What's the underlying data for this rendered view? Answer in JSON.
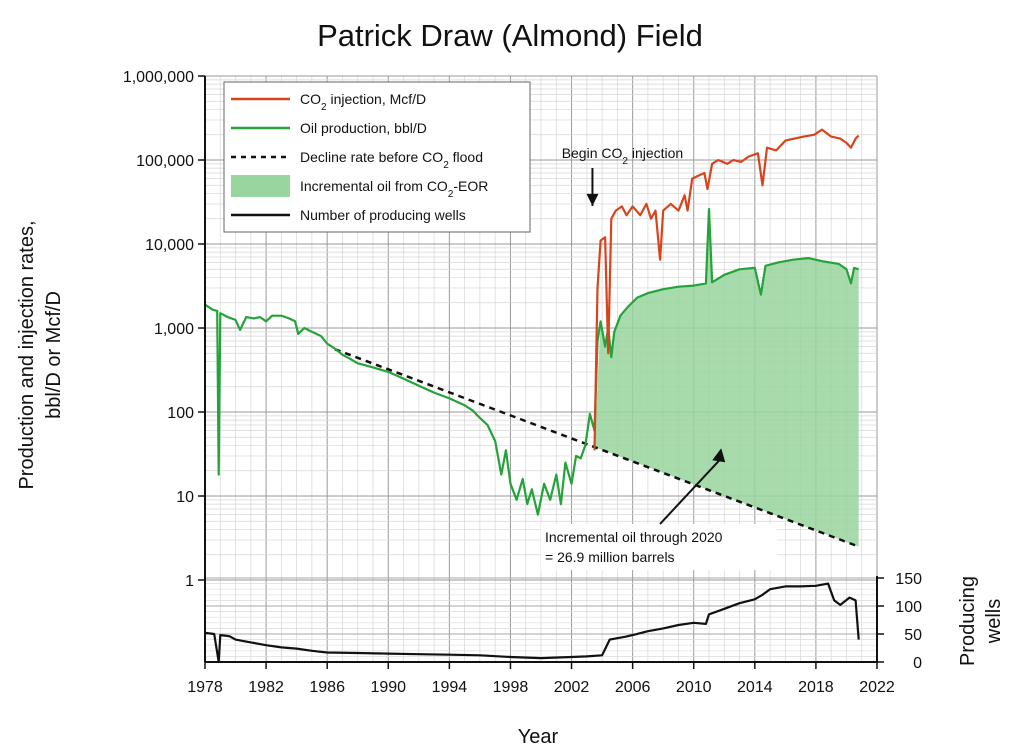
{
  "chart_data": {
    "type": "line",
    "title": "Patrick Draw (Almond) Field",
    "xlabel": "Year",
    "ylabel_line1": "Production and injection rates,",
    "ylabel_line2": "bbl/D or Mcf/D",
    "y2label_line1": "Producing",
    "y2label_line2": "wells",
    "x_ticks": [
      "1978",
      "1982",
      "1986",
      "1990",
      "1994",
      "1998",
      "2002",
      "2006",
      "2010",
      "2014",
      "2018",
      "2022"
    ],
    "xlim": [
      1978,
      2022
    ],
    "y_scale": "log",
    "ylim": [
      1,
      1000000
    ],
    "y_ticks": [
      "1",
      "10",
      "100",
      "1,000",
      "10,000",
      "100,000",
      "1,000,000"
    ],
    "y2lim": [
      0,
      150
    ],
    "y2_ticks": [
      "0",
      "50",
      "100",
      "150"
    ],
    "grid": true,
    "legend_position": "top-left",
    "legend": [
      {
        "prefix": "CO",
        "sub": "2",
        "suffix": " injection, Mcf/D",
        "kind": "line",
        "color": "#d9441d"
      },
      {
        "prefix": "Oil production, bbl/D",
        "sub": "",
        "suffix": "",
        "kind": "line",
        "color": "#23a33a"
      },
      {
        "prefix": "Decline rate before CO",
        "sub": "2",
        "suffix": " flood",
        "kind": "dash",
        "color": "#111111"
      },
      {
        "prefix": "Incremental oil from CO",
        "sub": "2",
        "suffix": "-EOR",
        "kind": "fill",
        "color": "#99d59e"
      },
      {
        "prefix": "Number of producing wells",
        "sub": "",
        "suffix": "",
        "kind": "line",
        "color": "#111111"
      }
    ],
    "annotations": {
      "begin_prefix": "Begin CO",
      "begin_sub": "2",
      "begin_suffix": " injection",
      "begin_year": 2003.5,
      "begin_arrow_tip": 30000,
      "incremental_line1": "Incremental oil through 2020",
      "incremental_line2": "= 26.9 million barrels",
      "incremental_arrow_tip": {
        "x": 2011.8,
        "y": 35
      }
    },
    "series": [
      {
        "name": "CO2 injection, Mcf/D",
        "color": "#d9441d",
        "points": [
          [
            2003.5,
            35
          ],
          [
            2003.7,
            3000
          ],
          [
            2003.9,
            11000
          ],
          [
            2004.2,
            12000
          ],
          [
            2004.4,
            500
          ],
          [
            2004.6,
            20000
          ],
          [
            2004.9,
            25000
          ],
          [
            2005.3,
            28000
          ],
          [
            2005.6,
            22000
          ],
          [
            2006.0,
            28000
          ],
          [
            2006.5,
            22000
          ],
          [
            2006.9,
            30000
          ],
          [
            2007.2,
            20000
          ],
          [
            2007.5,
            25000
          ],
          [
            2007.8,
            6500
          ],
          [
            2008.0,
            25000
          ],
          [
            2008.5,
            30000
          ],
          [
            2009.0,
            25000
          ],
          [
            2009.4,
            38000
          ],
          [
            2009.6,
            25000
          ],
          [
            2009.9,
            60000
          ],
          [
            2010.3,
            65000
          ],
          [
            2010.7,
            70000
          ],
          [
            2010.9,
            45000
          ],
          [
            2011.2,
            90000
          ],
          [
            2011.6,
            100000
          ],
          [
            2012.2,
            90000
          ],
          [
            2012.6,
            100000
          ],
          [
            2013.1,
            95000
          ],
          [
            2013.6,
            110000
          ],
          [
            2014.2,
            120000
          ],
          [
            2014.5,
            50000
          ],
          [
            2014.8,
            140000
          ],
          [
            2015.4,
            130000
          ],
          [
            2016.0,
            170000
          ],
          [
            2016.6,
            180000
          ],
          [
            2017.2,
            190000
          ],
          [
            2017.9,
            200000
          ],
          [
            2018.4,
            230000
          ],
          [
            2019.0,
            190000
          ],
          [
            2019.6,
            180000
          ],
          [
            2020.0,
            160000
          ],
          [
            2020.3,
            140000
          ],
          [
            2020.6,
            180000
          ],
          [
            2020.8,
            195000
          ]
        ]
      },
      {
        "name": "Oil production, bbl/D",
        "color": "#23a33a",
        "points": [
          [
            1978.0,
            1900
          ],
          [
            1978.5,
            1650
          ],
          [
            1978.8,
            1600
          ],
          [
            1978.9,
            18
          ],
          [
            1979.0,
            1500
          ],
          [
            1979.5,
            1350
          ],
          [
            1980.0,
            1250
          ],
          [
            1980.3,
            950
          ],
          [
            1980.7,
            1350
          ],
          [
            1981.2,
            1300
          ],
          [
            1981.6,
            1350
          ],
          [
            1982.0,
            1200
          ],
          [
            1982.4,
            1400
          ],
          [
            1983.0,
            1400
          ],
          [
            1983.5,
            1300
          ],
          [
            1983.9,
            1200
          ],
          [
            1984.1,
            850
          ],
          [
            1984.5,
            1000
          ],
          [
            1985.0,
            900
          ],
          [
            1985.6,
            800
          ],
          [
            1986.0,
            650
          ],
          [
            1986.5,
            570
          ],
          [
            1987.0,
            480
          ],
          [
            1987.5,
            430
          ],
          [
            1988.0,
            380
          ],
          [
            1988.5,
            360
          ],
          [
            1989.0,
            340
          ],
          [
            1990.0,
            300
          ],
          [
            1991.0,
            250
          ],
          [
            1992.0,
            205
          ],
          [
            1993.0,
            170
          ],
          [
            1994.0,
            145
          ],
          [
            1995.0,
            120
          ],
          [
            1995.5,
            105
          ],
          [
            1996.0,
            85
          ],
          [
            1996.5,
            70
          ],
          [
            1997.0,
            45
          ],
          [
            1997.4,
            18
          ],
          [
            1997.7,
            35
          ],
          [
            1998.0,
            14
          ],
          [
            1998.4,
            9
          ],
          [
            1998.8,
            16
          ],
          [
            1999.1,
            8
          ],
          [
            1999.4,
            12
          ],
          [
            1999.8,
            6
          ],
          [
            2000.2,
            14
          ],
          [
            2000.6,
            9
          ],
          [
            2001.0,
            18
          ],
          [
            2001.3,
            8
          ],
          [
            2001.6,
            25
          ],
          [
            2002.0,
            14
          ],
          [
            2002.3,
            30
          ],
          [
            2002.6,
            28
          ],
          [
            2002.9,
            40
          ],
          [
            2003.2,
            95
          ],
          [
            2003.5,
            60
          ],
          [
            2003.7,
            700
          ],
          [
            2003.9,
            1200
          ],
          [
            2004.2,
            600
          ],
          [
            2004.4,
            1000
          ],
          [
            2004.6,
            450
          ],
          [
            2004.8,
            900
          ],
          [
            2005.2,
            1400
          ],
          [
            2005.7,
            1800
          ],
          [
            2006.3,
            2300
          ],
          [
            2007.0,
            2600
          ],
          [
            2008.0,
            2900
          ],
          [
            2009.0,
            3100
          ],
          [
            2010.0,
            3200
          ],
          [
            2010.8,
            3400
          ],
          [
            2011.0,
            26000
          ],
          [
            2011.2,
            3500
          ],
          [
            2012.0,
            4300
          ],
          [
            2013.0,
            5000
          ],
          [
            2014.0,
            5200
          ],
          [
            2014.4,
            2500
          ],
          [
            2014.7,
            5500
          ],
          [
            2015.5,
            6000
          ],
          [
            2016.5,
            6500
          ],
          [
            2017.5,
            6800
          ],
          [
            2018.5,
            6200
          ],
          [
            2019.5,
            5800
          ],
          [
            2020.0,
            5000
          ],
          [
            2020.3,
            3400
          ],
          [
            2020.5,
            5200
          ],
          [
            2020.8,
            5000
          ]
        ]
      },
      {
        "name": "Decline rate before CO2 flood",
        "color": "#111111",
        "points": [
          [
            1986.5,
            560
          ],
          [
            2020.8,
            2.5
          ]
        ]
      },
      {
        "name": "Number of producing wells",
        "color": "#111111",
        "axis": "y2",
        "points": [
          [
            1978.0,
            52
          ],
          [
            1978.6,
            50
          ],
          [
            1978.9,
            0
          ],
          [
            1979.0,
            48
          ],
          [
            1979.6,
            46
          ],
          [
            1980.0,
            40
          ],
          [
            1981.0,
            35
          ],
          [
            1982.0,
            30
          ],
          [
            1983.0,
            26
          ],
          [
            1984.0,
            24
          ],
          [
            1985.0,
            20
          ],
          [
            1986.0,
            17
          ],
          [
            1988.0,
            16
          ],
          [
            1990.0,
            15
          ],
          [
            1992.0,
            14
          ],
          [
            1994.0,
            13
          ],
          [
            1996.0,
            12
          ],
          [
            1998.0,
            9
          ],
          [
            2000.0,
            7
          ],
          [
            2002.0,
            9
          ],
          [
            2003.0,
            10
          ],
          [
            2004.0,
            12
          ],
          [
            2004.5,
            40
          ],
          [
            2005.5,
            45
          ],
          [
            2006.0,
            48
          ],
          [
            2007.0,
            55
          ],
          [
            2008.0,
            60
          ],
          [
            2009.0,
            66
          ],
          [
            2010.0,
            70
          ],
          [
            2010.8,
            68
          ],
          [
            2011.0,
            85
          ],
          [
            2012.0,
            95
          ],
          [
            2013.0,
            105
          ],
          [
            2014.0,
            112
          ],
          [
            2014.5,
            120
          ],
          [
            2015.0,
            130
          ],
          [
            2016.0,
            135
          ],
          [
            2017.0,
            135
          ],
          [
            2018.0,
            136
          ],
          [
            2018.8,
            140
          ],
          [
            2019.2,
            110
          ],
          [
            2019.6,
            102
          ],
          [
            2020.2,
            115
          ],
          [
            2020.6,
            110
          ],
          [
            2020.8,
            40
          ]
        ]
      }
    ]
  }
}
